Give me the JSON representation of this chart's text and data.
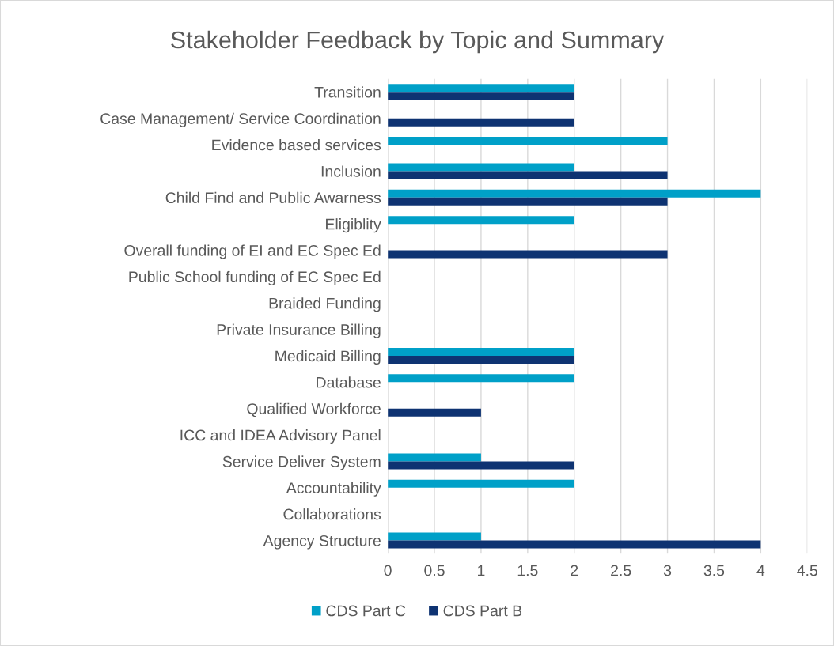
{
  "chart_data": {
    "type": "bar",
    "orientation": "horizontal",
    "title": "Stakeholder Feedback by Topic and Summary",
    "categories": [
      "Transition",
      "Case Management/ Service Coordination",
      "Evidence based services",
      "Inclusion",
      "Child Find and Public Awarness",
      "Eligiblity",
      "Overall funding of EI and EC Spec Ed",
      "Public School funding of EC Spec Ed",
      "Braided Funding",
      "Private Insurance Billing",
      "Medicaid Billing",
      "Database",
      "Qualified Workforce",
      "ICC and IDEA Advisory Panel",
      "Service Deliver System",
      "Accountability",
      "Collaborations",
      "Agency Structure"
    ],
    "series": [
      {
        "name": "CDS Part C",
        "color": "#00a0c8",
        "values": [
          2,
          null,
          3,
          2,
          4,
          2,
          null,
          null,
          null,
          null,
          2,
          2,
          null,
          null,
          1,
          2,
          null,
          1
        ]
      },
      {
        "name": "CDS Part B",
        "color": "#0e3372",
        "values": [
          2,
          2,
          null,
          3,
          3,
          null,
          3,
          null,
          null,
          null,
          2,
          null,
          1,
          null,
          2,
          null,
          null,
          4
        ]
      }
    ],
    "xlim": [
      0,
      4.5
    ],
    "xticks": [
      0,
      0.5,
      1,
      1.5,
      2,
      2.5,
      3,
      3.5,
      4,
      4.5
    ],
    "grid": "x",
    "legend": "bottom"
  }
}
